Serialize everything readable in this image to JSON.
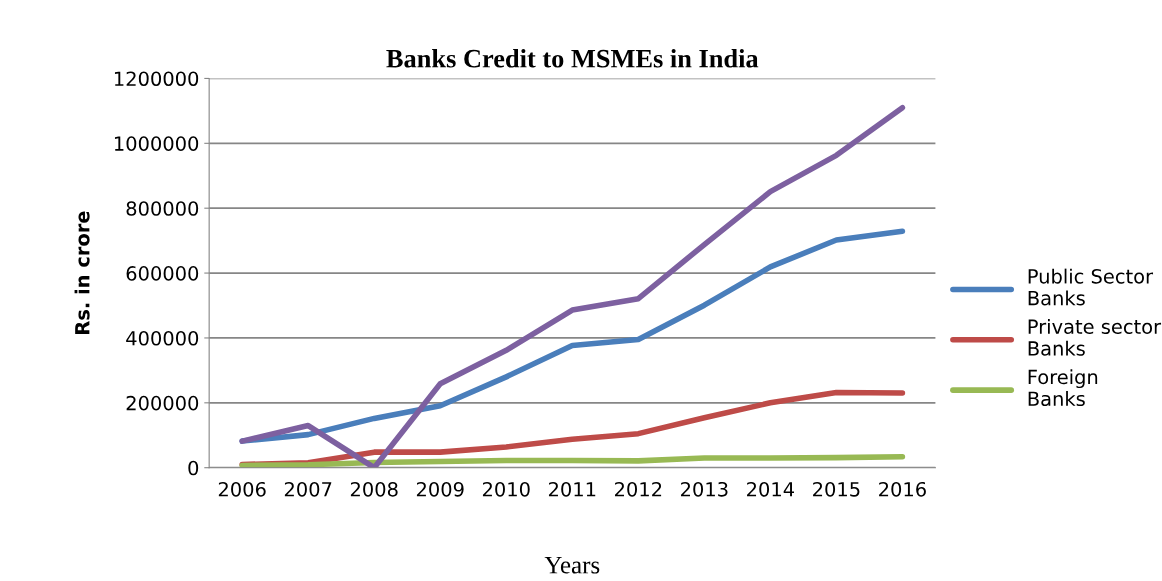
{
  "chart_data": {
    "type": "line",
    "title": "Banks Credit to MSMEs in India",
    "xlabel": "Years",
    "ylabel": "Rs. in crore",
    "categories": [
      "2006",
      "2007",
      "2008",
      "2009",
      "2010",
      "2011",
      "2012",
      "2013",
      "2014",
      "2015",
      "2016"
    ],
    "series": [
      {
        "name": "Public Sector Banks",
        "color": "#4a7ebb",
        "values": [
          82000,
          102000,
          152000,
          191000,
          280000,
          377000,
          395000,
          501000,
          619000,
          702000,
          729000
        ]
      },
      {
        "name": "Private sector Banks",
        "color": "#be4b48",
        "values": [
          10000,
          15000,
          48000,
          48000,
          64000,
          88000,
          105000,
          154000,
          200000,
          232000,
          230000
        ]
      },
      {
        "name": "Foreign Banks",
        "color": "#98b954",
        "values": [
          7000,
          9000,
          16000,
          19000,
          22000,
          22000,
          21000,
          30000,
          30000,
          31000,
          34000
        ]
      },
      {
        "color": "#7d60a0",
        "values": [
          82000,
          130000,
          0,
          259000,
          362000,
          486000,
          521000,
          688000,
          851000,
          963000,
          1110000
        ]
      }
    ],
    "ylim": [
      0,
      1200000
    ],
    "yticks": [
      0,
      200000,
      400000,
      600000,
      800000,
      1000000,
      1200000
    ],
    "grid": "y",
    "legend": "right",
    "marker": "none",
    "line_style": "solid"
  }
}
